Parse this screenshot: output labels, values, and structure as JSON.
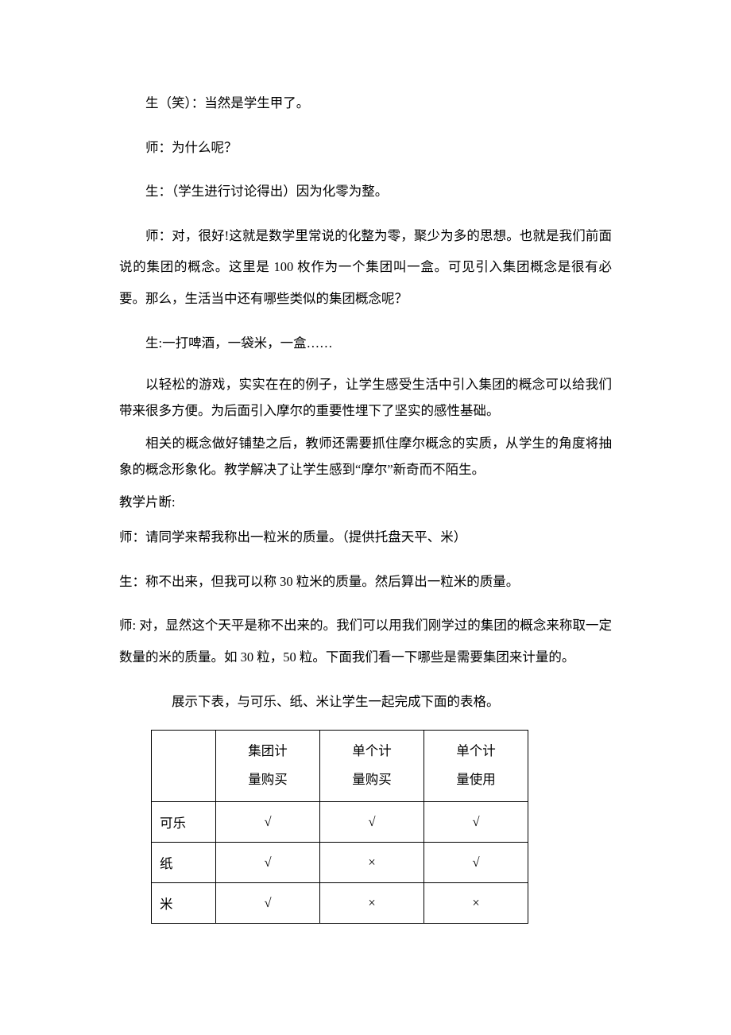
{
  "paragraphs": {
    "p1": "生（笑）：当然是学生甲了。",
    "p2": "师：为什么呢？",
    "p3": "生：（学生进行讨论得出）因为化零为整。",
    "p4": "师：对，很好!这就是数学里常说的化整为零，聚少为多的思想。也就是我们前面说的集团的概念。这里是 100 枚作为一个集团叫一盒。可见引入集团概念是很有必要。那么，生活当中还有哪些类似的集团概念呢？",
    "p5": "生:一打啤酒，一袋米，一盒……",
    "p6": "以轻松的游戏，实实在在的例子，让学生感受生活中引入集团的概念可以给我们带来很多方便。为后面引入摩尔的重要性埋下了坚实的感性基础。",
    "p7": "相关的概念做好铺垫之后，教师还需要抓住摩尔概念的实质，从学生的角度将抽象的概念形象化。教学解决了让学生感到“摩尔”新奇而不陌生。",
    "p8": "教学片断:",
    "p9": "师：请同学来帮我称出一粒米的质量。（提供托盘天平、米）",
    "p10": "生：称不出来，但我可以称 30 粒米的质量。然后算出一粒米的质量。",
    "p11": "师: 对，显然这个天平是称不出来的。我们可以用我们刚学过的集团的概念来称取一定数量的米的质量。如 30 粒，50 粒。下面我们看一下哪些是需要集团来计量的。",
    "p12": "展示下表，与可乐、纸、米让学生一起完成下面的表格。"
  },
  "table": {
    "columns": [
      "",
      "集团计量购买",
      "单个计量购买",
      "单个计量使用"
    ],
    "col1_line1": "集团计",
    "col1_line2": "量购买",
    "col2_line1": "单个计",
    "col2_line2": "量购买",
    "col3_line1": "单个计",
    "col3_line2": "量使用",
    "rows": [
      {
        "label": "可乐",
        "c1": "√",
        "c2": "√",
        "c3": "√"
      },
      {
        "label": "纸",
        "c1": "√",
        "c2": "×",
        "c3": "√"
      },
      {
        "label": "米",
        "c1": "√",
        "c2": "×",
        "c3": "×"
      }
    ]
  },
  "marks": {
    "check": "√",
    "cross": "×"
  }
}
